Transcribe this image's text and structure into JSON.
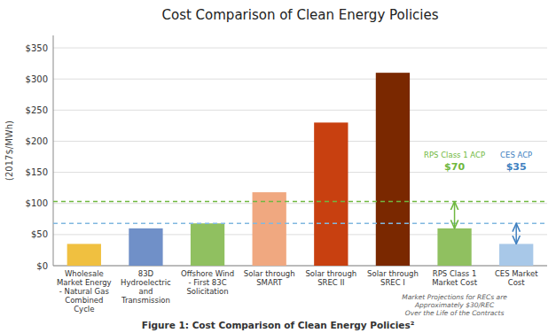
{
  "chart_data": {
    "type": "bar",
    "title": "Cost Comparison of Clean Energy Policies",
    "ylabel": "(2017$/MWh)",
    "categories": [
      "Wholesale\nMarket Energy\n- Natural Gas\nCombined\nCycle",
      "83D\nHydroelectric\nand\nTransmission",
      "Offshore Wind\n- First 83C\nSolicitation",
      "Solar through\nSMART",
      "Solar through\nSREC II",
      "Solar through\nSREC I",
      "RPS Class 1\nMarket Cost",
      "CES Market\nCost"
    ],
    "values": [
      35,
      60,
      68,
      118,
      230,
      310,
      60,
      35
    ],
    "colors": [
      "#f0c040",
      "#7090c8",
      "#90c060",
      "#f0a880",
      "#c84010",
      "#7a2800",
      "#90c060",
      "#a8c8e8"
    ],
    "ylim": [
      0,
      370
    ],
    "yticks": [
      {
        "value": 0,
        "label": "$0"
      },
      {
        "value": 50,
        "label": "$50"
      },
      {
        "value": 100,
        "label": "$100"
      },
      {
        "value": 150,
        "label": "$150"
      },
      {
        "value": 200,
        "label": "$200"
      },
      {
        "value": 250,
        "label": "$250"
      },
      {
        "value": 300,
        "label": "$300"
      },
      {
        "value": 350,
        "label": "$350"
      }
    ],
    "grid": true,
    "reference_lines": [
      {
        "value": 103,
        "color": "#70b840",
        "category": "RPS Class 1\nMarket Cost",
        "label": "RPS Class 1 ACP",
        "value_label": "$70",
        "label_color": "#70b840"
      },
      {
        "value": 68,
        "color": "#80b8e0",
        "category": "CES Market\nCost",
        "label": "CES ACP",
        "value_label": "$35",
        "label_color": "#4080c0"
      }
    ],
    "annotations": [
      {
        "text": "Market Projections for RECs are\nApproximately $30/REC\nOver the Life of the Contracts",
        "color": "#606060",
        "category": "RPS Class 1\nMarket Cost"
      }
    ],
    "caption": "Figure 1: Cost Comparison of Clean Energy Policies²"
  }
}
